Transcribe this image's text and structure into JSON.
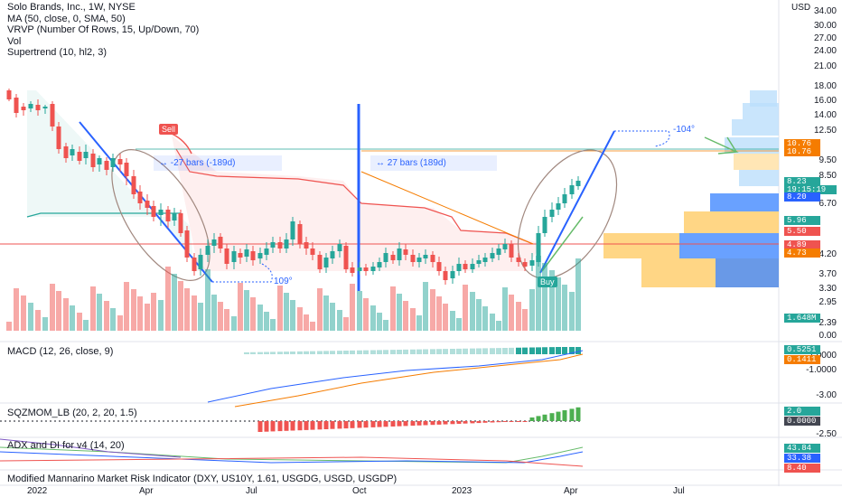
{
  "header": {
    "title": "Solo Brands, Inc., 1W, NYSE",
    "indicators": [
      "MA (50, close, 0, SMA, 50)",
      "VRVP (Number Of Rows, 15, Up/Down, 70)",
      "Vol",
      "Supertrend (10, hl2, 3)"
    ]
  },
  "price_axis": {
    "currency": "USD",
    "ticks": [
      "34.00",
      "30.00",
      "27.00",
      "24.00",
      "21.00",
      "18.00",
      "16.00",
      "14.00",
      "12.50",
      "9.50",
      "8.50",
      "6.70",
      "4.20",
      "3.70",
      "3.30",
      "2.95",
      "2.39",
      "0.00"
    ]
  },
  "price_badges": [
    {
      "text": "10.76",
      "color": "#f57c00"
    },
    {
      "text": "10.76",
      "color": "#f57c00"
    },
    {
      "text": "8.23",
      "color": "#26a69a"
    },
    {
      "text": "19:15:19",
      "color": "#26a69a"
    },
    {
      "text": "8.20",
      "color": "#2962ff"
    },
    {
      "text": "5.96",
      "color": "#26a69a"
    },
    {
      "text": "5.50",
      "color": "#ef5350"
    },
    {
      "text": "4.89",
      "color": "#ef5350"
    },
    {
      "text": "4.73",
      "color": "#f57c00"
    },
    {
      "text": "1.648M",
      "color": "#26a69a"
    }
  ],
  "annotations": {
    "sell_label": "Sell",
    "buy_label": "Buy",
    "range_left": "-27 bars (-189d)",
    "range_right": "27 bars (189d)",
    "angle_left": "109°",
    "angle_right": "-104°"
  },
  "macd": {
    "title": "MACD (12, 26, close, 9)",
    "ticks": [
      "1.0000",
      "-1.0000",
      "-3.00"
    ],
    "badges": [
      {
        "text": "0.5251",
        "color": "#26a69a"
      },
      {
        "text": "0.1411",
        "color": "#f57c00"
      }
    ]
  },
  "sqzmom": {
    "title": "SQZMOM_LB (20, 2, 20, 1.5)",
    "ticks": [
      "-2.50"
    ],
    "badges": [
      {
        "text": "2.0",
        "color": "#26a69a"
      },
      {
        "text": "0.0000",
        "color": "#434651"
      }
    ]
  },
  "adx": {
    "title": "ADX and DI for v4 (14, 20)",
    "badges": [
      {
        "text": "43.84",
        "color": "#26a69a"
      },
      {
        "text": "33.38",
        "color": "#2962ff"
      }
    ]
  },
  "mmri": {
    "title": "Modified Mannarino Market Risk Indicator (DXY, US10Y, 1.61, USGDG, USGD, USGDP)",
    "badges": [
      {
        "text": "8.40",
        "color": "#ef5350"
      }
    ]
  },
  "time_axis": [
    "2022",
    "Apr",
    "Jul",
    "Oct",
    "2023",
    "Apr",
    "Jul"
  ],
  "colors": {
    "up": "#26a69a",
    "down": "#ef5350",
    "accent": "#2962ff"
  }
}
